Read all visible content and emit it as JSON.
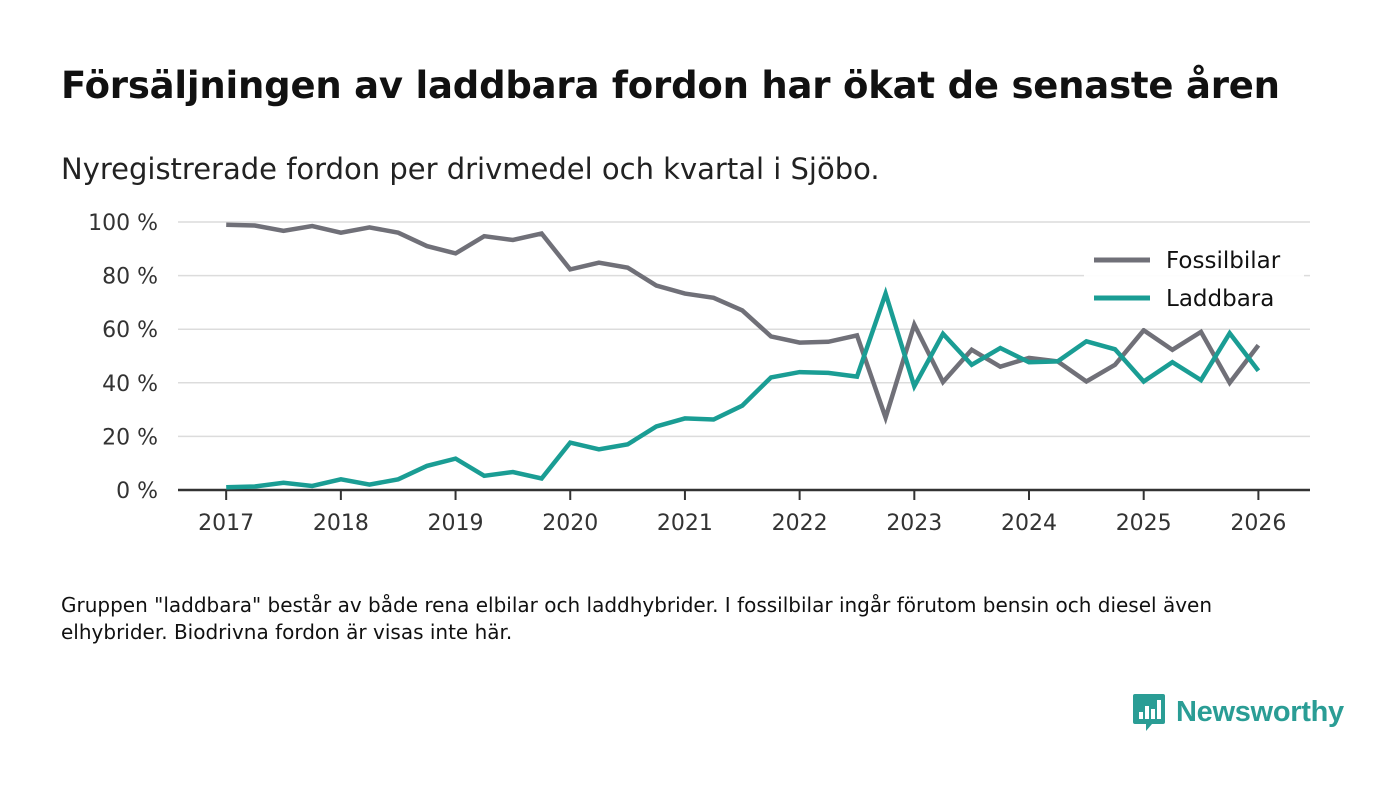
{
  "title": "Försäljningen av laddbara fordon har ökat de senaste åren",
  "subtitle": "Nyregistrerade fordon per drivmedel och kvartal i Sjöbo.",
  "note": "Gruppen \"laddbara\" består av både rena elbilar och laddhybrider. I fossilbilar ingår förutom bensin och diesel även elhybrider. Biodrivna fordon är visas inte här.",
  "brand": "Newsworthy",
  "colors": {
    "fossil": "#707078",
    "laddbara": "#1a9d94",
    "grid": "#dcdcdc",
    "axis": "#333333",
    "brand": "#2a9d95"
  },
  "chart_data": {
    "type": "line",
    "x": [
      2017.0,
      2017.25,
      2017.5,
      2017.75,
      2018.0,
      2018.25,
      2018.5,
      2018.75,
      2019.0,
      2019.25,
      2019.5,
      2019.75,
      2020.0,
      2020.25,
      2020.5,
      2020.75,
      2021.0,
      2021.25,
      2021.5,
      2021.75,
      2022.0,
      2022.25,
      2022.5,
      2022.75,
      2023.0,
      2023.25,
      2023.5,
      2023.75,
      2024.0,
      2024.25,
      2024.5,
      2024.75,
      2025.0,
      2025.25,
      2025.5,
      2025.75,
      2026.0
    ],
    "series": [
      {
        "name": "Fossilbilar",
        "values": [
          99,
          98.7,
          96.7,
          98.5,
          96,
          98,
          96,
          91,
          88.3,
          94.7,
          93.3,
          95.7,
          82.3,
          84.8,
          83,
          76.3,
          73.3,
          71.7,
          67,
          57.3,
          55,
          55.3,
          57.7,
          27,
          61.7,
          40.3,
          52.3,
          46,
          49.3,
          48,
          40.5,
          46.7,
          59.6,
          52.3,
          59,
          40,
          54
        ]
      },
      {
        "name": "Laddbara",
        "values": [
          1,
          1.3,
          2.7,
          1.5,
          4,
          2,
          4,
          9,
          11.7,
          5.3,
          6.7,
          4.3,
          17.7,
          15.2,
          17,
          23.7,
          26.7,
          26.3,
          31.5,
          42,
          44,
          43.7,
          42.3,
          73.3,
          38.7,
          58.3,
          46.7,
          53,
          47.7,
          48,
          55.5,
          52.5,
          40.5,
          47.7,
          41,
          58.5,
          44.5
        ]
      }
    ],
    "x_ticks": [
      "2017",
      "2018",
      "2019",
      "2020",
      "2021",
      "2022",
      "2023",
      "2024",
      "2025",
      "2026"
    ],
    "y_ticks": [
      "0 %",
      "20 %",
      "40 %",
      "60 %",
      "80 %",
      "100 %"
    ],
    "ylim": [
      0,
      100
    ],
    "xlim": [
      2016.58,
      2026.45
    ],
    "legend_position": "top-right",
    "grid": true
  }
}
